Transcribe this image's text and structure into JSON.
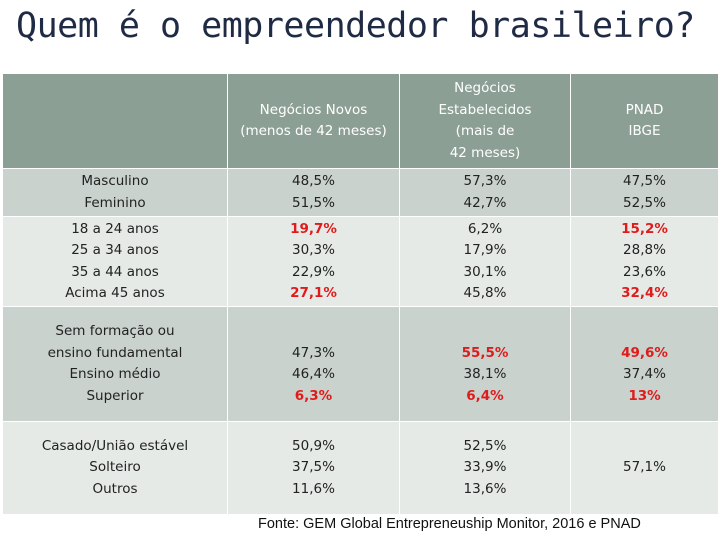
{
  "title": "Quem é o empreendedor brasileiro?",
  "table": {
    "headers": [
      [
        "Negócios Novos",
        "(menos de 42 meses)"
      ],
      [
        "Negócios",
        "Estabelecidos",
        "(mais de",
        "42 meses)"
      ],
      [
        "PNAD",
        "IBGE"
      ]
    ],
    "rows": [
      {
        "labels": [
          "Masculino",
          "Feminino"
        ],
        "novos": [
          "48,5%",
          "51,5%"
        ],
        "estabelecidos": [
          "57,3%",
          "42,7%"
        ],
        "pnad": [
          "47,5%",
          "52,5%"
        ]
      },
      {
        "labels": [
          "18 a 24 anos",
          "25 a 34 anos",
          "35 a 44 anos",
          "Acima 45 anos"
        ],
        "novos": [
          "19,7%",
          "30,3%",
          "22,9%",
          "27,1%"
        ],
        "estabelecidos": [
          "6,2%",
          "17,9%",
          "30,1%",
          "45,8%"
        ],
        "pnad": [
          "15,2%",
          "28,8%",
          "23,6%",
          "32,4%"
        ]
      },
      {
        "labels": [
          "Sem formação ou",
          "ensino fundamental",
          "Ensino médio",
          "Superior"
        ],
        "novos": [
          "47,3%",
          "46,4%",
          "6,3%"
        ],
        "estabelecidos": [
          "55,5%",
          "38,1%",
          "6,4%"
        ],
        "pnad": [
          "49,6%",
          "37,4%",
          "13%"
        ]
      },
      {
        "labels": [
          "Casado/União estável",
          "Solteiro",
          "Outros"
        ],
        "novos": [
          "50,9%",
          "37,5%",
          "11,6%"
        ],
        "estabelecidos": [
          "52,5%",
          "33,9%",
          "13,6%"
        ],
        "pnad": [
          "57,1%"
        ]
      }
    ],
    "highlight_color": "#e01b1b"
  },
  "footer": "Fonte: GEM Global Entrepreneuship Monitor, 2016 e PNAD"
}
